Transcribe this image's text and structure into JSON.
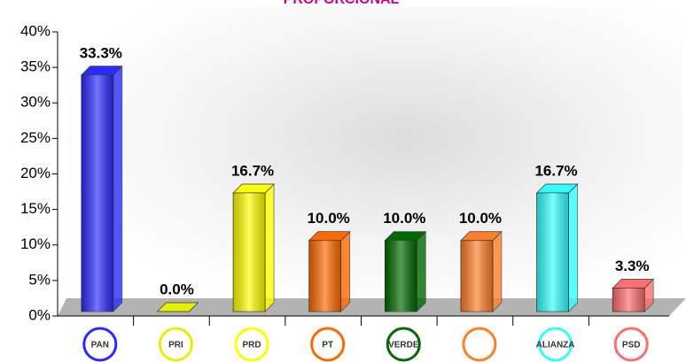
{
  "chart_data": {
    "type": "bar",
    "title": "PROPORCIONAL",
    "categories": [
      "PAN",
      "PRI",
      "PRD",
      "PT",
      "VERDE",
      null,
      "ALIANZA",
      "PSD"
    ],
    "values": [
      33.3,
      0.0,
      16.7,
      10.0,
      10.0,
      10.0,
      16.7,
      3.3
    ],
    "value_labels": [
      "33.3%",
      "0.0%",
      "16.7%",
      "10.0%",
      "10.0%",
      "10.0%",
      "16.7%",
      "3.3%"
    ],
    "colors": [
      "#2b2bff",
      "#e6f000",
      "#ffff00",
      "#ff6a00",
      "#006a00",
      "#ff7f2a",
      "#33ffff",
      "#ff6f6f"
    ],
    "ylim": [
      0,
      40
    ],
    "yticks": [
      {
        "value": 0,
        "label": "0%"
      },
      {
        "value": 5,
        "label": "5%"
      },
      {
        "value": 10,
        "label": "10%"
      },
      {
        "value": 15,
        "label": "15%"
      },
      {
        "value": 20,
        "label": "20%"
      },
      {
        "value": 25,
        "label": "25%"
      },
      {
        "value": 30,
        "label": "30%"
      },
      {
        "value": 35,
        "label": "35%"
      },
      {
        "value": 40,
        "label": "40%"
      }
    ]
  }
}
